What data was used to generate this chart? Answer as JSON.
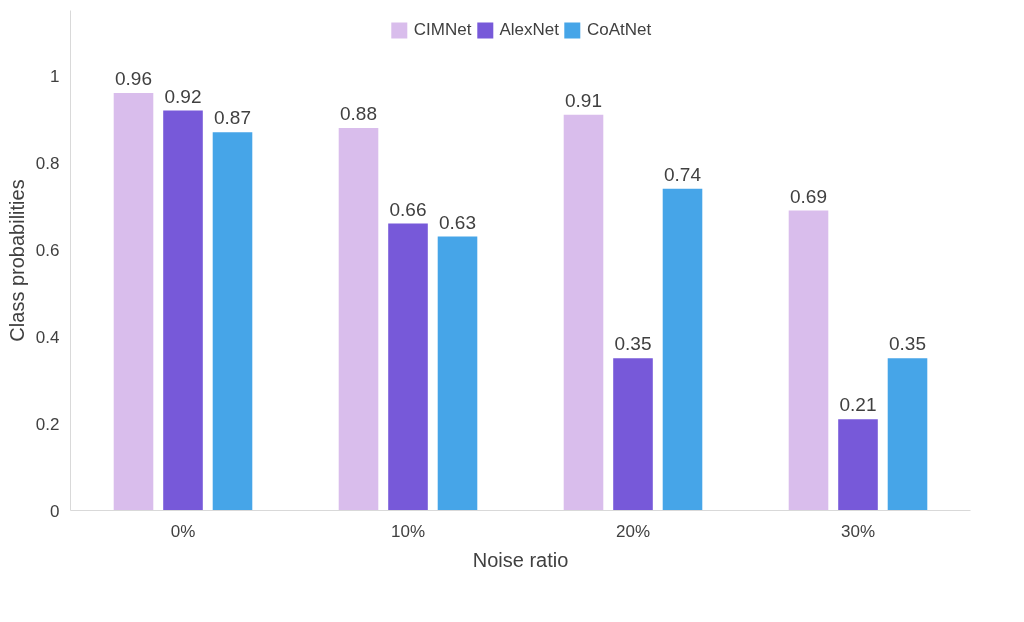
{
  "chart_data": {
    "type": "bar",
    "xlabel": "Noise ratio",
    "ylabel": "Class probabilities",
    "categories": [
      "0%",
      "10%",
      "20%",
      "30%"
    ],
    "series": [
      {
        "name": "CIMNet",
        "color": "#d9bdec",
        "values": [
          0.96,
          0.88,
          0.91,
          0.69
        ]
      },
      {
        "name": "AlexNet",
        "color": "#7759d9",
        "values": [
          0.92,
          0.66,
          0.35,
          0.21
        ]
      },
      {
        "name": "CoAtNet",
        "color": "#46a5e8",
        "values": [
          0.87,
          0.63,
          0.74,
          0.35
        ]
      }
    ],
    "ylim": [
      0,
      1.15
    ],
    "yticks": [
      0,
      0.2,
      0.4,
      0.6,
      0.8,
      1
    ],
    "data_labels": true,
    "legend": "top",
    "grid": false
  }
}
